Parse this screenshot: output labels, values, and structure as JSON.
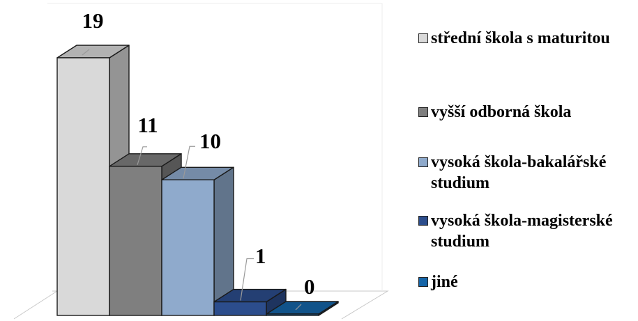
{
  "chart_data": {
    "type": "bar",
    "variant": "3d-column",
    "title": "",
    "xlabel": "",
    "ylabel": "",
    "ylim": [
      0,
      19
    ],
    "grid": false,
    "legend_position": "right",
    "categories": [
      "střední škola s maturitou",
      "vyšší odborná škola",
      "vysoká škola-bakalářské studium",
      "vysoká škola-magisterské studium",
      "jiné"
    ],
    "values": [
      19,
      11,
      10,
      1,
      0
    ],
    "data_labels": [
      "19",
      "11",
      "10",
      "1",
      "0"
    ],
    "colors": [
      "#d9d9d9",
      "#7f7f7f",
      "#8faacc",
      "#2c4d8c",
      "#1565a8"
    ]
  }
}
